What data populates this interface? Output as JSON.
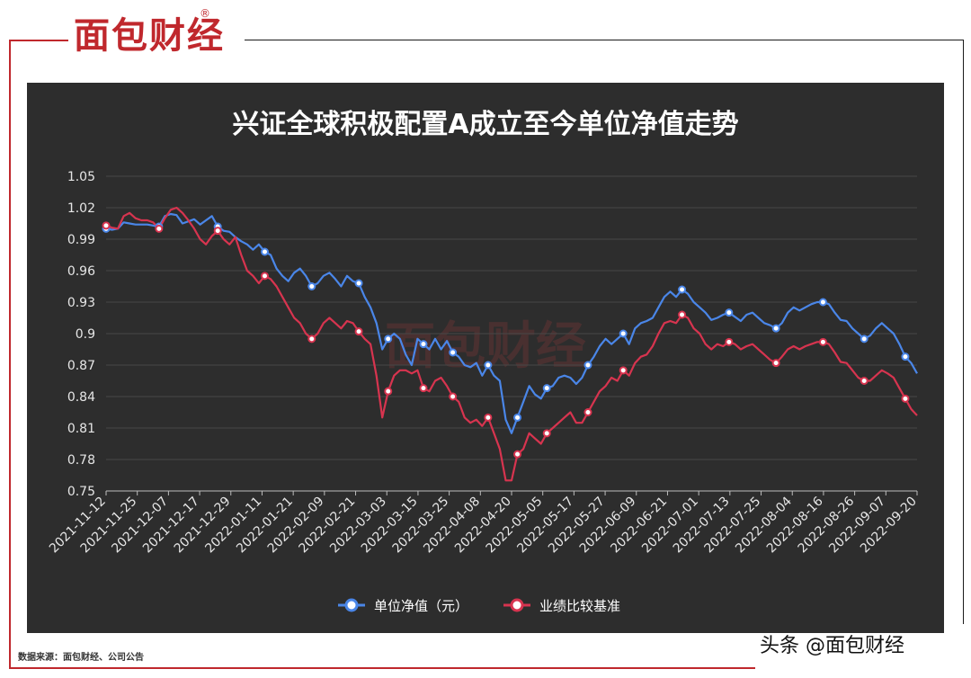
{
  "header": {
    "logo": "面包财经",
    "logo_mark": "®"
  },
  "footer": {
    "source": "数据来源：面包财经、公司公告",
    "credit": "头条 @面包财经"
  },
  "colors": {
    "brand": "#c0282d",
    "panel": "#2d2d2d",
    "nav": "#4a86e8",
    "benchmark": "#d7344f"
  },
  "chart_data": {
    "type": "line",
    "title": "兴证全球积极配置A成立至今单位净值走势",
    "watermark": "面包财经",
    "ylim": [
      0.75,
      1.05
    ],
    "yticks": [
      "1.05",
      "1.02",
      "0.99",
      "0.96",
      "0.93",
      "0.9",
      "0.87",
      "0.84",
      "0.81",
      "0.78",
      "0.75"
    ],
    "xticks": [
      "2021-11-12",
      "2021-11-25",
      "2021-12-07",
      "2021-12-17",
      "2021-12-29",
      "2022-01-11",
      "2022-01-21",
      "2022-02-09",
      "2022-02-21",
      "2022-03-03",
      "2022-03-15",
      "2022-03-25",
      "2022-04-08",
      "2022-04-20",
      "2022-05-05",
      "2022-05-17",
      "2022-05-27",
      "2022-06-09",
      "2022-06-21",
      "2022-07-01",
      "2022-07-13",
      "2022-07-25",
      "2022-08-04",
      "2022-08-16",
      "2022-08-26",
      "2022-09-07",
      "2022-09-20"
    ],
    "grid": true,
    "legend_position": "bottom",
    "series": [
      {
        "name": "单位净值（元）",
        "color": "#4a86e8",
        "values": [
          1.0,
          0.999,
          1.0,
          1.006,
          1.005,
          1.004,
          1.004,
          1.004,
          1.003,
          1.002,
          1.012,
          1.014,
          1.013,
          1.005,
          1.007,
          1.009,
          1.004,
          1.008,
          1.012,
          1.002,
          0.998,
          0.997,
          0.992,
          0.988,
          0.985,
          0.98,
          0.985,
          0.978,
          0.975,
          0.962,
          0.955,
          0.95,
          0.958,
          0.962,
          0.955,
          0.945,
          0.948,
          0.955,
          0.958,
          0.952,
          0.945,
          0.955,
          0.95,
          0.948,
          0.935,
          0.925,
          0.91,
          0.885,
          0.895,
          0.9,
          0.895,
          0.88,
          0.87,
          0.895,
          0.89,
          0.885,
          0.895,
          0.885,
          0.893,
          0.882,
          0.878,
          0.87,
          0.868,
          0.872,
          0.86,
          0.87,
          0.86,
          0.855,
          0.818,
          0.805,
          0.82,
          0.835,
          0.85,
          0.842,
          0.838,
          0.848,
          0.85,
          0.858,
          0.86,
          0.858,
          0.852,
          0.858,
          0.87,
          0.878,
          0.888,
          0.895,
          0.89,
          0.895,
          0.9,
          0.89,
          0.905,
          0.91,
          0.912,
          0.915,
          0.925,
          0.935,
          0.94,
          0.935,
          0.942,
          0.938,
          0.93,
          0.925,
          0.92,
          0.913,
          0.915,
          0.918,
          0.92,
          0.916,
          0.912,
          0.918,
          0.92,
          0.915,
          0.91,
          0.908,
          0.905,
          0.91,
          0.92,
          0.925,
          0.922,
          0.925,
          0.928,
          0.93,
          0.93,
          0.928,
          0.92,
          0.913,
          0.912,
          0.905,
          0.9,
          0.895,
          0.898,
          0.905,
          0.91,
          0.905,
          0.9,
          0.89,
          0.878,
          0.872,
          0.862
        ]
      },
      {
        "name": "业绩比较基准",
        "color": "#d7344f",
        "values": [
          1.003,
          1.001,
          1.0,
          1.012,
          1.015,
          1.01,
          1.008,
          1.008,
          1.006,
          1.0,
          1.01,
          1.018,
          1.02,
          1.015,
          1.008,
          1.0,
          0.99,
          0.985,
          0.993,
          0.998,
          0.99,
          0.985,
          0.992,
          0.975,
          0.96,
          0.955,
          0.948,
          0.955,
          0.952,
          0.945,
          0.935,
          0.925,
          0.915,
          0.91,
          0.9,
          0.895,
          0.9,
          0.91,
          0.915,
          0.91,
          0.905,
          0.912,
          0.91,
          0.902,
          0.895,
          0.89,
          0.86,
          0.82,
          0.845,
          0.86,
          0.865,
          0.865,
          0.862,
          0.865,
          0.848,
          0.845,
          0.855,
          0.858,
          0.85,
          0.84,
          0.835,
          0.82,
          0.815,
          0.818,
          0.812,
          0.82,
          0.805,
          0.79,
          0.76,
          0.76,
          0.785,
          0.79,
          0.805,
          0.8,
          0.795,
          0.805,
          0.81,
          0.815,
          0.82,
          0.825,
          0.815,
          0.815,
          0.825,
          0.835,
          0.845,
          0.85,
          0.858,
          0.855,
          0.865,
          0.86,
          0.872,
          0.878,
          0.88,
          0.888,
          0.9,
          0.91,
          0.912,
          0.91,
          0.918,
          0.915,
          0.905,
          0.9,
          0.89,
          0.885,
          0.89,
          0.888,
          0.892,
          0.89,
          0.885,
          0.888,
          0.89,
          0.885,
          0.88,
          0.875,
          0.872,
          0.878,
          0.885,
          0.888,
          0.885,
          0.888,
          0.89,
          0.892,
          0.892,
          0.89,
          0.882,
          0.873,
          0.872,
          0.865,
          0.858,
          0.855,
          0.855,
          0.86,
          0.865,
          0.862,
          0.858,
          0.848,
          0.838,
          0.828,
          0.822
        ]
      }
    ],
    "marker_indices": [
      0,
      9,
      19,
      27,
      35,
      43,
      48,
      54,
      59,
      65,
      70,
      75,
      82,
      88,
      98,
      106,
      114,
      122,
      129,
      136,
      141
    ]
  }
}
